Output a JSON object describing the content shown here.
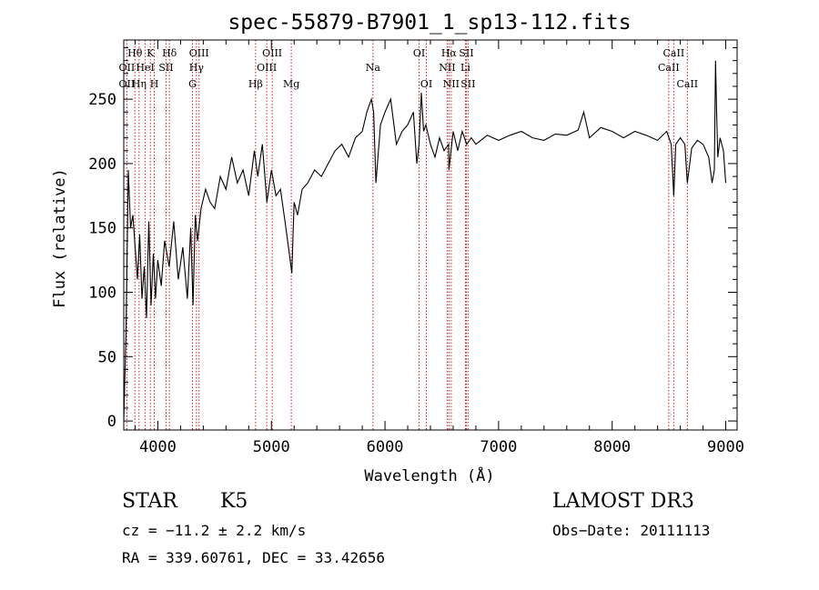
{
  "chart_data": {
    "type": "line",
    "title": "spec-55879-B7901_1_sp13-112.fits",
    "xlabel": "Wavelength (Å)",
    "ylabel": "Flux (relative)",
    "xlim": [
      3700,
      9100
    ],
    "ylim": [
      -7,
      296
    ],
    "xticks": [
      4000,
      5000,
      6000,
      7000,
      8000,
      9000
    ],
    "yticks": [
      0,
      50,
      100,
      150,
      200,
      250
    ],
    "series": [
      {
        "name": "flux",
        "x": [
          3700,
          3720,
          3740,
          3760,
          3780,
          3800,
          3820,
          3840,
          3860,
          3880,
          3900,
          3920,
          3940,
          3960,
          3980,
          4000,
          4030,
          4060,
          4100,
          4140,
          4180,
          4220,
          4260,
          4290,
          4310,
          4330,
          4350,
          4380,
          4420,
          4460,
          4500,
          4550,
          4600,
          4650,
          4700,
          4750,
          4800,
          4850,
          4880,
          4920,
          4960,
          5000,
          5040,
          5080,
          5120,
          5150,
          5180,
          5200,
          5230,
          5270,
          5320,
          5380,
          5440,
          5500,
          5560,
          5620,
          5680,
          5740,
          5800,
          5840,
          5880,
          5900,
          5920,
          5960,
          6000,
          6050,
          6100,
          6150,
          6200,
          6250,
          6280,
          6300,
          6320,
          6340,
          6360,
          6400,
          6440,
          6480,
          6520,
          6560,
          6563,
          6600,
          6640,
          6680,
          6720,
          6760,
          6800,
          6900,
          7000,
          7100,
          7200,
          7300,
          7400,
          7500,
          7600,
          7700,
          7750,
          7800,
          7900,
          8000,
          8100,
          8200,
          8300,
          8400,
          8480,
          8520,
          8542,
          8560,
          8600,
          8640,
          8662,
          8700,
          8750,
          8800,
          8850,
          8880,
          8900,
          8910,
          8920,
          8930,
          8950,
          8980,
          9000
        ],
        "values": [
          0,
          70,
          195,
          150,
          160,
          135,
          110,
          145,
          95,
          120,
          80,
          155,
          90,
          130,
          95,
          125,
          105,
          140,
          120,
          155,
          110,
          135,
          95,
          150,
          90,
          160,
          140,
          165,
          180,
          170,
          165,
          190,
          180,
          205,
          185,
          195,
          175,
          210,
          190,
          215,
          170,
          195,
          175,
          180,
          155,
          135,
          115,
          170,
          160,
          180,
          185,
          195,
          190,
          200,
          210,
          215,
          205,
          220,
          225,
          240,
          250,
          240,
          185,
          230,
          240,
          250,
          215,
          225,
          230,
          240,
          200,
          215,
          255,
          225,
          230,
          215,
          205,
          220,
          210,
          215,
          195,
          225,
          210,
          225,
          215,
          220,
          215,
          222,
          218,
          222,
          225,
          220,
          218,
          223,
          222,
          226,
          240,
          220,
          228,
          225,
          220,
          225,
          222,
          218,
          225,
          215,
          175,
          215,
          220,
          215,
          185,
          212,
          218,
          215,
          205,
          185,
          195,
          280,
          240,
          205,
          220,
          210,
          185
        ]
      }
    ],
    "line_labels": [
      {
        "text": "OII",
        "wavelength": 3727,
        "row": 2
      },
      {
        "text": "Hθ",
        "wavelength": 3798,
        "row": 1
      },
      {
        "text": "OII",
        "wavelength": 3727,
        "row": 3
      },
      {
        "text": "Hη",
        "wavelength": 3835,
        "row": 3
      },
      {
        "text": "HeI",
        "wavelength": 3889,
        "row": 2
      },
      {
        "text": "K",
        "wavelength": 3934,
        "row": 1
      },
      {
        "text": "H",
        "wavelength": 3969,
        "row": 3
      },
      {
        "text": "SII",
        "wavelength": 4072,
        "row": 2
      },
      {
        "text": "Hδ",
        "wavelength": 4102,
        "row": 1
      },
      {
        "text": "Hγ",
        "wavelength": 4340,
        "row": 2
      },
      {
        "text": "G",
        "wavelength": 4305,
        "row": 3
      },
      {
        "text": "OIII",
        "wavelength": 4363,
        "row": 1
      },
      {
        "text": "Hβ",
        "wavelength": 4861,
        "row": 3
      },
      {
        "text": "OIII",
        "wavelength": 4959,
        "row": 2
      },
      {
        "text": "OIII",
        "wavelength": 5007,
        "row": 1
      },
      {
        "text": "Mg",
        "wavelength": 5175,
        "row": 3
      },
      {
        "text": "Na",
        "wavelength": 5894,
        "row": 2
      },
      {
        "text": "OI",
        "wavelength": 6300,
        "row": 1
      },
      {
        "text": "OI",
        "wavelength": 6364,
        "row": 3
      },
      {
        "text": "Hα",
        "wavelength": 6563,
        "row": 1
      },
      {
        "text": "NII",
        "wavelength": 6548,
        "row": 2
      },
      {
        "text": "NII",
        "wavelength": 6583,
        "row": 3
      },
      {
        "text": "SII",
        "wavelength": 6716,
        "row": 1
      },
      {
        "text": "Li",
        "wavelength": 6708,
        "row": 2
      },
      {
        "text": "SII",
        "wavelength": 6731,
        "row": 3
      },
      {
        "text": "CaII",
        "wavelength": 8542,
        "row": 1
      },
      {
        "text": "CaII",
        "wavelength": 8498,
        "row": 2
      },
      {
        "text": "CaII",
        "wavelength": 8662,
        "row": 3
      }
    ],
    "line_markers": [
      3727,
      3798,
      3835,
      3889,
      3934,
      3969,
      4072,
      4102,
      4305,
      4340,
      4363,
      4861,
      4959,
      5007,
      5175,
      5894,
      6300,
      6364,
      6548,
      6563,
      6583,
      6708,
      6716,
      6731,
      8498,
      8542,
      8662
    ]
  },
  "info": {
    "object_class": "STAR",
    "subclass": "K5",
    "survey": "LAMOST DR3",
    "redshift": "cz = −11.2 ± 2.2 km/s",
    "obs_date": "Obs−Date: 20111113",
    "coords": "RA = 339.60761, DEC =  33.42656"
  },
  "colors": {
    "marker": "#cc2222",
    "spectrum": "#000000",
    "axis": "#000000"
  }
}
